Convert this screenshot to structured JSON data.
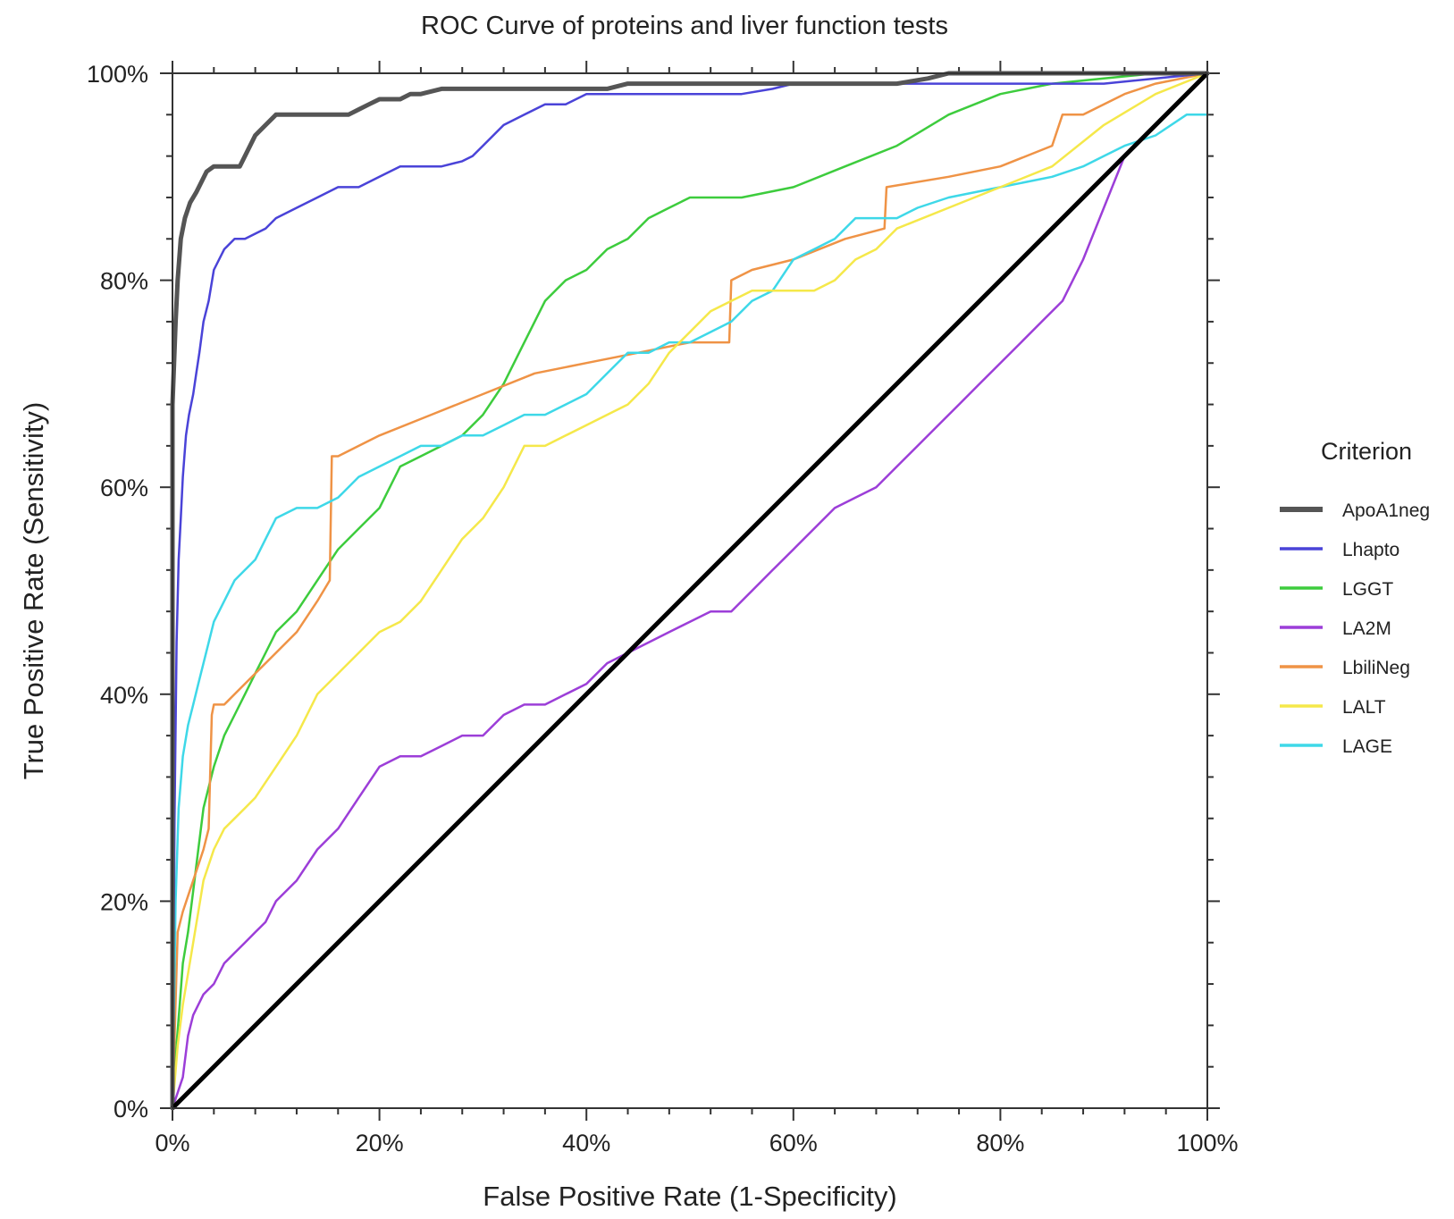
{
  "chart_data": {
    "type": "line",
    "title": "ROC Curve of proteins and liver function tests",
    "xlabel": "False Positive Rate (1-Specificity)",
    "ylabel": "True Positive Rate (Sensitivity)",
    "xlim": [
      0,
      100
    ],
    "ylim": [
      0,
      100
    ],
    "x_ticks": [
      "0%",
      "20%",
      "40%",
      "60%",
      "80%",
      "100%"
    ],
    "y_ticks": [
      "0%",
      "20%",
      "40%",
      "60%",
      "80%",
      "100%"
    ],
    "grid": false,
    "legend": {
      "title": "Criterion",
      "position": "right"
    },
    "reference_line": {
      "x": [
        0,
        100
      ],
      "y": [
        0,
        100
      ],
      "color": "#000000"
    },
    "series": [
      {
        "name": "ApoA1neg",
        "color": "#555555",
        "width": 5,
        "x": [
          0,
          0,
          0.3,
          0.5,
          0.8,
          1.2,
          1.7,
          2.3,
          2.8,
          3.3,
          4,
          5,
          6.5,
          7,
          8,
          9,
          10,
          12,
          15,
          17,
          18,
          19,
          20,
          22,
          23,
          24,
          26,
          27,
          30,
          35,
          42,
          44,
          50,
          60,
          70,
          73,
          75,
          80,
          90,
          100
        ],
        "y": [
          0,
          68,
          76,
          80,
          84,
          86,
          87.5,
          88.5,
          89.5,
          90.5,
          91,
          91,
          91,
          92,
          94,
          95,
          96,
          96,
          96,
          96,
          96.5,
          97,
          97.5,
          97.5,
          98,
          98,
          98.5,
          98.5,
          98.5,
          98.5,
          98.5,
          99,
          99,
          99,
          99,
          99.5,
          100,
          100,
          100,
          100
        ]
      },
      {
        "name": "Lhapto",
        "color": "#4a43d8",
        "width": 2.5,
        "x": [
          0,
          0.2,
          0.4,
          0.6,
          0.8,
          1,
          1.3,
          1.6,
          2,
          2.3,
          2.6,
          3,
          3.5,
          4,
          5,
          6,
          7,
          8,
          9,
          10,
          12,
          14,
          16,
          18,
          20,
          22,
          24,
          26,
          28,
          29,
          30,
          31,
          32,
          34,
          36,
          38,
          40,
          45,
          50,
          55,
          58,
          60,
          65,
          70,
          75,
          80,
          90,
          100
        ],
        "y": [
          0,
          28,
          45,
          53,
          57,
          61,
          65,
          67,
          69,
          71,
          73,
          76,
          78,
          81,
          83,
          84,
          84,
          84.5,
          85,
          86,
          87,
          88,
          89,
          89,
          90,
          91,
          91,
          91,
          91.5,
          92,
          93,
          94,
          95,
          96,
          97,
          97,
          98,
          98,
          98,
          98,
          98.5,
          99,
          99,
          99,
          99,
          99,
          99,
          100
        ]
      },
      {
        "name": "LGGT",
        "color": "#3dcc3d",
        "width": 2.5,
        "x": [
          0,
          0.3,
          0.7,
          1,
          1.5,
          2,
          2.5,
          3,
          3.5,
          4,
          5,
          6,
          7,
          8,
          9,
          10,
          12,
          14,
          16,
          18,
          20,
          22,
          24,
          26,
          28,
          30,
          32,
          34,
          36,
          38,
          40,
          42,
          44,
          46,
          48,
          50,
          55,
          60,
          65,
          70,
          75,
          80,
          85,
          90,
          95,
          100
        ],
        "y": [
          0,
          5,
          10,
          14,
          17,
          21,
          25,
          29,
          31,
          33,
          36,
          38,
          40,
          42,
          44,
          46,
          48,
          51,
          54,
          56,
          58,
          62,
          63,
          64,
          65,
          67,
          70,
          74,
          78,
          80,
          81,
          83,
          84,
          86,
          87,
          88,
          88,
          89,
          91,
          93,
          96,
          98,
          99,
          99.5,
          100,
          100
        ]
      },
      {
        "name": "LA2M",
        "color": "#9c3ed8",
        "width": 2.5,
        "x": [
          0,
          1,
          1.5,
          2,
          3,
          4,
          5,
          6,
          7,
          8,
          9,
          10,
          12,
          14,
          16,
          18,
          20,
          22,
          24,
          26,
          28,
          30,
          32,
          34,
          36,
          38,
          40,
          42,
          44,
          46,
          48,
          50,
          52,
          54,
          56,
          58,
          60,
          62,
          64,
          66,
          68,
          70,
          72,
          74,
          76,
          78,
          80,
          82,
          84,
          86,
          88,
          90,
          92,
          95,
          100
        ],
        "y": [
          0,
          3,
          7,
          9,
          11,
          12,
          14,
          15,
          16,
          17,
          18,
          20,
          22,
          25,
          27,
          30,
          33,
          34,
          34,
          35,
          36,
          36,
          38,
          39,
          39,
          40,
          41,
          43,
          44,
          45,
          46,
          47,
          48,
          48,
          50,
          52,
          54,
          56,
          58,
          59,
          60,
          62,
          64,
          66,
          68,
          70,
          72,
          74,
          76,
          78,
          82,
          87,
          92,
          95,
          100
        ]
      },
      {
        "name": "LbiliNeg",
        "color": "#ef9346",
        "width": 2.5,
        "x": [
          0,
          0.5,
          1,
          2,
          3,
          3.5,
          3.8,
          4,
          5,
          6,
          8,
          10,
          12,
          14,
          15.2,
          15.4,
          16,
          18,
          20,
          25,
          30,
          35,
          40,
          45,
          50,
          53.8,
          54,
          56,
          60,
          65,
          68.8,
          69,
          75,
          80,
          85,
          86,
          88,
          90,
          92,
          95,
          100
        ],
        "y": [
          0,
          17,
          19,
          22,
          25,
          27,
          38,
          39,
          39,
          40,
          42,
          44,
          46,
          49,
          51,
          63,
          63,
          64,
          65,
          67,
          69,
          71,
          72,
          73,
          74,
          74,
          80,
          81,
          82,
          84,
          85,
          89,
          90,
          91,
          93,
          96,
          96,
          97,
          98,
          99,
          100
        ]
      },
      {
        "name": "LALT",
        "color": "#f5e84a",
        "width": 2.5,
        "x": [
          0,
          0.5,
          1,
          2,
          3,
          4,
          5,
          6,
          7,
          8,
          10,
          12,
          14,
          16,
          18,
          20,
          22,
          24,
          26,
          28,
          30,
          32,
          34,
          36,
          38,
          40,
          42,
          44,
          46,
          48,
          50,
          52,
          54,
          56,
          58,
          60,
          62,
          64,
          66,
          68,
          70,
          75,
          80,
          85,
          90,
          95,
          100
        ],
        "y": [
          0,
          6,
          10,
          16,
          22,
          25,
          27,
          28,
          29,
          30,
          33,
          36,
          40,
          42,
          44,
          46,
          47,
          49,
          52,
          55,
          57,
          60,
          64,
          64,
          65,
          66,
          67,
          68,
          70,
          73,
          75,
          77,
          78,
          79,
          79,
          79,
          79,
          80,
          82,
          83,
          85,
          87,
          89,
          91,
          95,
          98,
          100
        ]
      },
      {
        "name": "LAGE",
        "color": "#3ed8e8",
        "width": 2.5,
        "x": [
          0,
          0.3,
          0.6,
          1,
          1.5,
          2,
          2.5,
          3,
          3.5,
          4,
          5,
          6,
          7,
          8,
          9,
          10,
          12,
          14,
          16,
          18,
          20,
          22,
          24,
          26,
          28,
          30,
          32,
          34,
          36,
          38,
          40,
          42,
          44,
          46,
          48,
          50,
          52,
          54,
          56,
          58,
          60,
          62,
          64,
          66,
          68,
          70,
          72,
          75,
          80,
          85,
          88,
          90,
          92,
          95,
          98,
          100
        ],
        "y": [
          0,
          20,
          29,
          34,
          37,
          39,
          41,
          43,
          45,
          47,
          49,
          51,
          52,
          53,
          55,
          57,
          58,
          58,
          59,
          61,
          62,
          63,
          64,
          64,
          65,
          65,
          66,
          67,
          67,
          68,
          69,
          71,
          73,
          73,
          74,
          74,
          75,
          76,
          78,
          79,
          82,
          83,
          84,
          86,
          86,
          86,
          87,
          88,
          89,
          90,
          91,
          92,
          93,
          94,
          96,
          96
        ]
      }
    ]
  }
}
